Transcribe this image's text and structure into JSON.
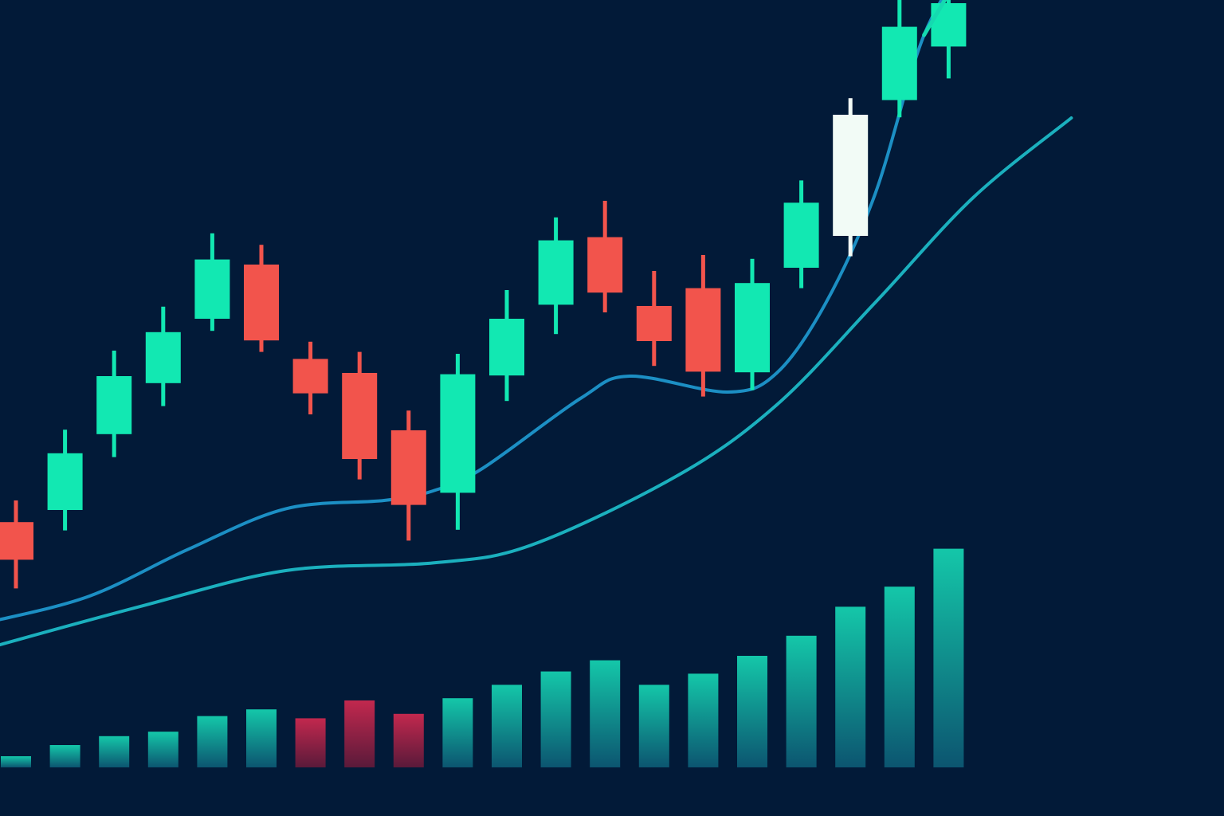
{
  "colors": {
    "background": "#021a38",
    "up": "#12e8b2",
    "down": "#f2544c",
    "highlight": "#f2fbf6",
    "volume_up_top": "#14c7a9",
    "volume_up_bottom": "#0c5570",
    "volume_down_top": "#c2284e",
    "volume_down_bottom": "#5a1a3a",
    "fast_ma": "#1c8fc4",
    "slow_ma": "#1bb0be",
    "arrow": "#15d9b0"
  },
  "chart_data": {
    "type": "candlestick",
    "title": "",
    "xlabel": "",
    "ylabel": "",
    "ylim": [
      0,
      100
    ],
    "volume_ylim": [
      0,
      100
    ],
    "axes_visible": false,
    "grid": false,
    "candles": [
      {
        "direction": "down",
        "open": 28.1,
        "close": 22.2,
        "high": 31.5,
        "low": 17.7
      },
      {
        "direction": "up",
        "open": 30.0,
        "close": 38.9,
        "high": 42.6,
        "low": 26.8
      },
      {
        "direction": "up",
        "open": 41.9,
        "close": 51.0,
        "high": 55.0,
        "low": 38.3
      },
      {
        "direction": "up",
        "open": 49.9,
        "close": 57.9,
        "high": 61.9,
        "low": 46.3
      },
      {
        "direction": "up",
        "open": 60.0,
        "close": 69.3,
        "high": 73.4,
        "low": 58.1
      },
      {
        "direction": "down",
        "open": 68.5,
        "close": 56.6,
        "high": 71.6,
        "low": 54.8
      },
      {
        "direction": "down",
        "open": 53.7,
        "close": 48.3,
        "high": 56.4,
        "low": 45.0
      },
      {
        "direction": "down",
        "open": 51.5,
        "close": 38.0,
        "high": 54.8,
        "low": 34.8
      },
      {
        "direction": "down",
        "open": 42.5,
        "close": 30.8,
        "high": 45.6,
        "low": 25.2
      },
      {
        "direction": "up",
        "open": 32.7,
        "close": 51.3,
        "high": 54.5,
        "low": 26.9
      },
      {
        "direction": "up",
        "open": 51.1,
        "close": 60.0,
        "high": 64.5,
        "low": 47.1
      },
      {
        "direction": "up",
        "open": 62.2,
        "close": 72.3,
        "high": 75.9,
        "low": 57.6
      },
      {
        "direction": "down",
        "open": 72.8,
        "close": 64.1,
        "high": 78.5,
        "low": 61.0
      },
      {
        "direction": "down",
        "open": 62.0,
        "close": 56.5,
        "high": 67.5,
        "low": 52.6
      },
      {
        "direction": "down",
        "open": 64.8,
        "close": 51.7,
        "high": 70.0,
        "low": 47.8
      },
      {
        "direction": "up",
        "open": 51.6,
        "close": 65.6,
        "high": 69.4,
        "low": 48.8
      },
      {
        "direction": "up",
        "open": 68.0,
        "close": 78.2,
        "high": 81.7,
        "low": 64.8
      },
      {
        "direction": "up",
        "open": 73.0,
        "close": 92.0,
        "high": 94.6,
        "low": 69.8
      },
      {
        "direction": "up",
        "open": 94.3,
        "close": 105.8,
        "high": 112.0,
        "low": 91.6
      },
      {
        "direction": "up",
        "open": 102.7,
        "close": 109.5,
        "high": 111.8,
        "low": 97.7
      }
    ],
    "volume": [
      {
        "direction": "up",
        "value": 5
      },
      {
        "direction": "up",
        "value": 10
      },
      {
        "direction": "up",
        "value": 14
      },
      {
        "direction": "up",
        "value": 16
      },
      {
        "direction": "up",
        "value": 23
      },
      {
        "direction": "up",
        "value": 26
      },
      {
        "direction": "down",
        "value": 22
      },
      {
        "direction": "down",
        "value": 30
      },
      {
        "direction": "down",
        "value": 24
      },
      {
        "direction": "up",
        "value": 31
      },
      {
        "direction": "up",
        "value": 37
      },
      {
        "direction": "up",
        "value": 43
      },
      {
        "direction": "up",
        "value": 48
      },
      {
        "direction": "up",
        "value": 37
      },
      {
        "direction": "up",
        "value": 42
      },
      {
        "direction": "up",
        "value": 50
      },
      {
        "direction": "up",
        "value": 59
      },
      {
        "direction": "up",
        "value": 72
      },
      {
        "direction": "up",
        "value": 81
      },
      {
        "direction": "up",
        "value": 98
      }
    ],
    "moving_averages": [
      {
        "role": "fast",
        "points": [
          [
            -0.5,
            12.5
          ],
          [
            1.5,
            16.5
          ],
          [
            3.5,
            23.8
          ],
          [
            5.5,
            30.2
          ],
          [
            7.5,
            31.5
          ],
          [
            8.5,
            33.0
          ],
          [
            9.5,
            36.5
          ],
          [
            11.5,
            47.5
          ],
          [
            12.5,
            51.0
          ],
          [
            14.5,
            48.5
          ],
          [
            15.5,
            51.5
          ],
          [
            16.5,
            62.5
          ],
          [
            17.5,
            79.5
          ],
          [
            18.5,
            104.5
          ],
          [
            19.5,
            117.5
          ]
        ]
      },
      {
        "role": "slow",
        "points": [
          [
            -0.5,
            8.5
          ],
          [
            2.5,
            14.8
          ],
          [
            5.5,
            20.5
          ],
          [
            8.5,
            21.7
          ],
          [
            10.5,
            24.5
          ],
          [
            13.5,
            35.5
          ],
          [
            15.5,
            46.5
          ],
          [
            17.5,
            62.5
          ],
          [
            19.5,
            79.0
          ],
          [
            21.5,
            91.5
          ]
        ]
      }
    ],
    "trend_arrow": {
      "direction": "up"
    }
  }
}
